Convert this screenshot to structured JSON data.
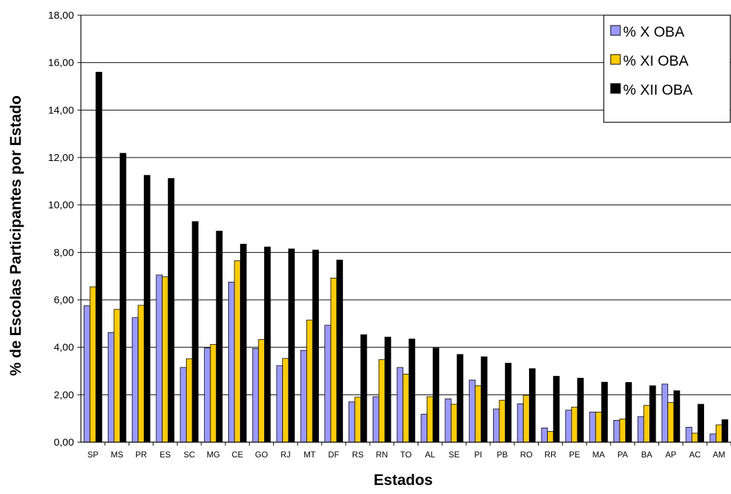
{
  "chart_data": {
    "type": "bar",
    "xlabel": "Estados",
    "ylabel": "% de Escolas Participantes por Estado",
    "ylim": [
      0,
      18
    ],
    "yticks": [
      "0,00",
      "2,00",
      "4,00",
      "6,00",
      "8,00",
      "10,00",
      "12,00",
      "14,00",
      "16,00",
      "18,00"
    ],
    "grid": true,
    "legend_position": "top-right",
    "categories": [
      "SP",
      "MS",
      "PR",
      "ES",
      "SC",
      "MG",
      "CE",
      "GO",
      "RJ",
      "MT",
      "DF",
      "RS",
      "RN",
      "TO",
      "AL",
      "SE",
      "PI",
      "PB",
      "RO",
      "RR",
      "PE",
      "MA",
      "PA",
      "BA",
      "AP",
      "AC",
      "AM"
    ],
    "series": [
      {
        "name": "% X OBA",
        "color": "#9999ff",
        "values": [
          5.75,
          4.62,
          5.25,
          7.05,
          3.15,
          3.97,
          6.75,
          3.95,
          3.23,
          3.87,
          4.93,
          1.7,
          1.92,
          3.15,
          1.18,
          1.83,
          2.62,
          1.4,
          1.62,
          0.6,
          1.35,
          1.27,
          0.92,
          1.08,
          2.45,
          0.63,
          0.35
        ]
      },
      {
        "name": "% XI OBA",
        "color": "#ffcc00",
        "values": [
          6.55,
          5.6,
          5.77,
          6.97,
          3.52,
          4.12,
          7.65,
          4.33,
          3.53,
          5.15,
          6.92,
          1.9,
          3.48,
          2.87,
          1.92,
          1.6,
          2.38,
          1.77,
          1.98,
          0.45,
          1.48,
          1.27,
          0.98,
          1.55,
          1.67,
          0.38,
          0.73
        ]
      },
      {
        "name": "% XII OBA",
        "color": "#000000",
        "values": [
          15.6,
          12.18,
          11.25,
          11.12,
          9.3,
          8.9,
          8.35,
          8.23,
          8.15,
          8.1,
          7.68,
          4.53,
          4.43,
          4.35,
          3.97,
          3.7,
          3.6,
          3.33,
          3.1,
          2.78,
          2.7,
          2.53,
          2.52,
          2.38,
          2.17,
          1.6,
          0.95
        ]
      }
    ]
  }
}
